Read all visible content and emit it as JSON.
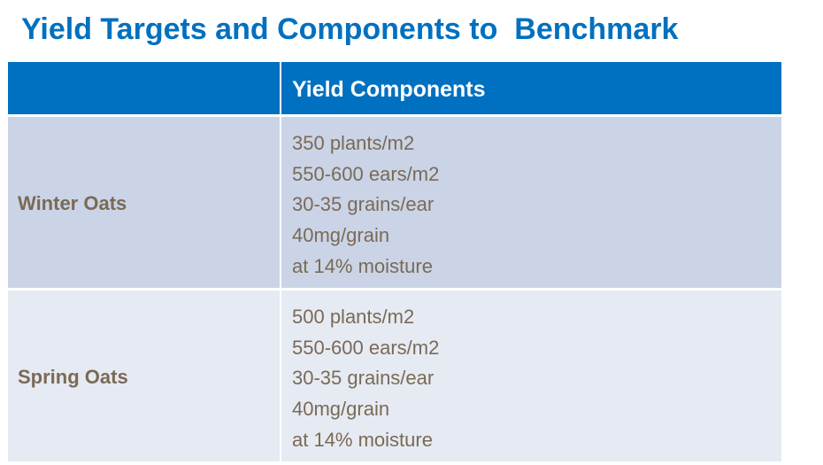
{
  "title": "Yield Targets and Components to  Benchmark",
  "table": {
    "headers": [
      "",
      "Yield Components"
    ],
    "rows": [
      {
        "crop": "Winter Oats",
        "components": [
          "350 plants/m2",
          "550-600 ears/m2",
          "30-35 grains/ear",
          "40mg/grain",
          "at 14% moisture"
        ]
      },
      {
        "crop": "Spring Oats",
        "components": [
          "500 plants/m2",
          "550-600 ears/m2",
          "30-35 grains/ear",
          "40mg/grain",
          "at 14% moisture"
        ]
      }
    ]
  },
  "colors": {
    "header": "#0070C0",
    "row1": "#CAD4E6",
    "row2": "#E6EAF3",
    "text": "#7A6A56"
  }
}
